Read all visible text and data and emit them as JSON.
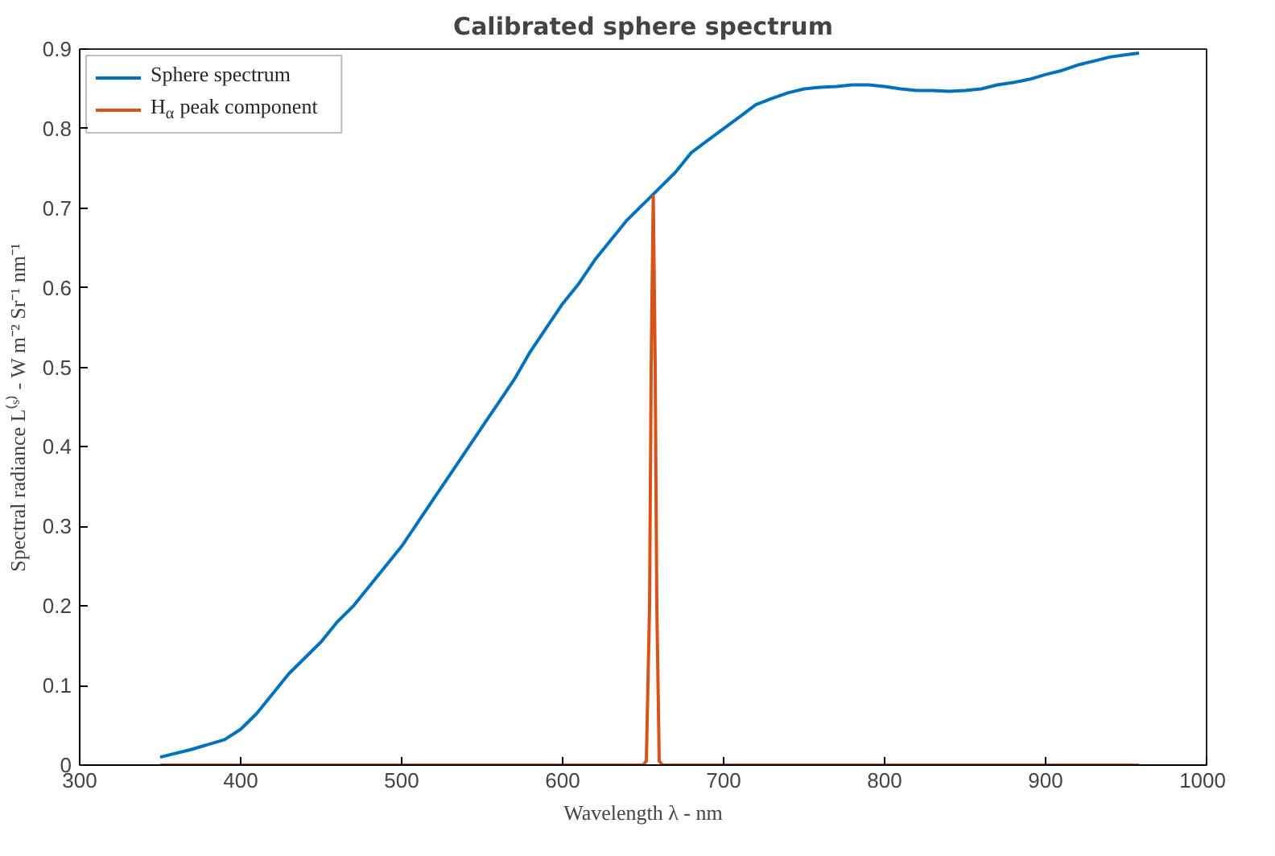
{
  "chart_data": {
    "type": "line",
    "title": "Calibrated sphere spectrum",
    "xlabel": "Wavelength λ - nm",
    "ylabel": "Spectral radiance L⁽ˢ⁾ - W m⁻² Sr⁻¹ nm⁻¹",
    "xlim": [
      300,
      1000
    ],
    "ylim": [
      0,
      0.9
    ],
    "xticks": [
      300,
      400,
      500,
      600,
      700,
      800,
      900,
      1000
    ],
    "yticks": [
      0,
      0.1,
      0.2,
      0.3,
      0.4,
      0.5,
      0.6,
      0.7,
      0.8,
      0.9
    ],
    "grid": false,
    "legend": "top left",
    "line_style": "solid",
    "series": [
      {
        "name": "Sphere spectrum",
        "color": "#0072bd",
        "x": [
          350,
          370,
          390,
          400,
          410,
          420,
          430,
          440,
          450,
          460,
          470,
          480,
          490,
          500,
          510,
          520,
          530,
          540,
          550,
          560,
          570,
          580,
          590,
          600,
          610,
          620,
          630,
          640,
          650,
          660,
          670,
          680,
          690,
          700,
          710,
          720,
          730,
          740,
          750,
          760,
          770,
          780,
          790,
          800,
          810,
          820,
          830,
          840,
          850,
          860,
          870,
          880,
          890,
          900,
          910,
          920,
          930,
          940,
          950,
          958
        ],
        "values": [
          0.01,
          0.02,
          0.032,
          0.045,
          0.065,
          0.09,
          0.115,
          0.135,
          0.155,
          0.18,
          0.2,
          0.225,
          0.25,
          0.275,
          0.305,
          0.335,
          0.365,
          0.395,
          0.425,
          0.455,
          0.485,
          0.52,
          0.55,
          0.58,
          0.605,
          0.635,
          0.66,
          0.685,
          0.705,
          0.725,
          0.745,
          0.77,
          0.785,
          0.8,
          0.815,
          0.83,
          0.838,
          0.845,
          0.85,
          0.852,
          0.853,
          0.855,
          0.855,
          0.853,
          0.85,
          0.848,
          0.848,
          0.847,
          0.848,
          0.85,
          0.855,
          0.858,
          0.862,
          0.868,
          0.873,
          0.88,
          0.885,
          0.89,
          0.893,
          0.895
        ]
      },
      {
        "name": "H$_{α}$ peak component",
        "color": "#d95319",
        "x": [
          350,
          650,
          652,
          654,
          655,
          656.3,
          657.5,
          658.5,
          660,
          662,
          958
        ],
        "values": [
          0,
          0,
          0.005,
          0.2,
          0.5,
          0.715,
          0.5,
          0.2,
          0.005,
          0,
          0
        ]
      }
    ]
  }
}
